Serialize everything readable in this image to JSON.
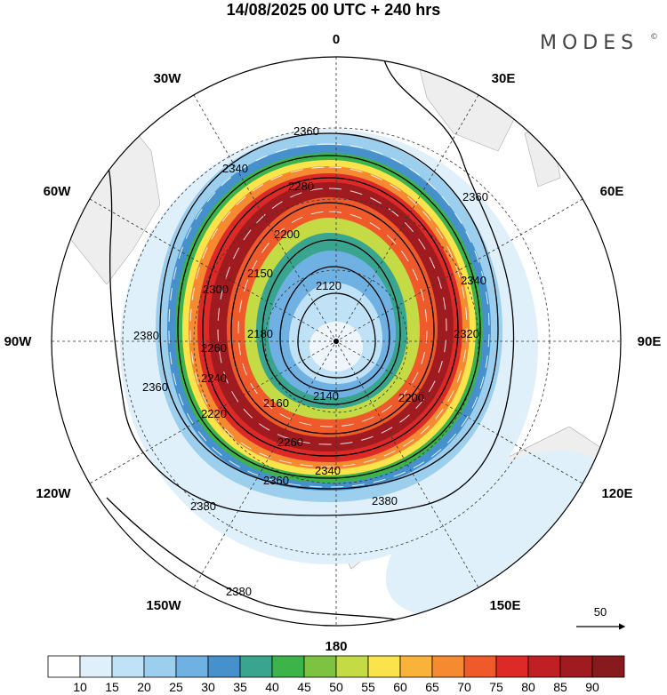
{
  "title": "14/08/2025  00 UTC  + 240 hrs",
  "brand": "MODES",
  "brand_mark": "©",
  "longitude_labels": {
    "north": "0",
    "n30e": "30E",
    "n60e": "60E",
    "east": "90E",
    "s120e": "120E",
    "s150e": "150E",
    "south": "180",
    "s150w": "150W",
    "s120w": "120W",
    "west": "90W",
    "n60w": "60W",
    "n30w": "30W"
  },
  "contour_labels": [
    "2360",
    "2340",
    "2280",
    "2200",
    "2150",
    "2120",
    "2300",
    "2180",
    "2260",
    "2240",
    "2220",
    "2140",
    "2160",
    "2200",
    "2260",
    "2340",
    "2360",
    "2380",
    "2380",
    "2380",
    "2380",
    "2360",
    "2320",
    "2340",
    "2360"
  ],
  "reference_vector_label": "50",
  "colorbar": {
    "ticks": [
      "10",
      "15",
      "20",
      "25",
      "30",
      "35",
      "40",
      "45",
      "50",
      "55",
      "60",
      "65",
      "70",
      "75",
      "80",
      "85",
      "90"
    ],
    "colors": [
      "#ffffff",
      "#dff0fb",
      "#bfe2f6",
      "#9ccfee",
      "#6eb1e2",
      "#4691cb",
      "#3aa58f",
      "#3db44a",
      "#7dc341",
      "#c4db45",
      "#fbe34c",
      "#f9b33b",
      "#f58a31",
      "#ee5a2a",
      "#dd2a27",
      "#c01f24",
      "#a01b20",
      "#861a1c"
    ]
  },
  "chart_data": {
    "type": "polar-stereographic-map",
    "title": "14/08/2025  00 UTC  + 240 hrs",
    "valid_date": "14/08/2025",
    "init_time": "00 UTC",
    "lead_time": "+ 240 hrs",
    "shaded_field_levels": [
      10,
      15,
      20,
      25,
      30,
      35,
      40,
      45,
      50,
      55,
      60,
      65,
      70,
      75,
      80,
      85,
      90
    ],
    "contour_field_labels": [
      2120,
      2140,
      2150,
      2160,
      2180,
      2200,
      2220,
      2240,
      2260,
      2280,
      2300,
      2320,
      2340,
      2360,
      2380
    ],
    "reference_vector": 50
  }
}
